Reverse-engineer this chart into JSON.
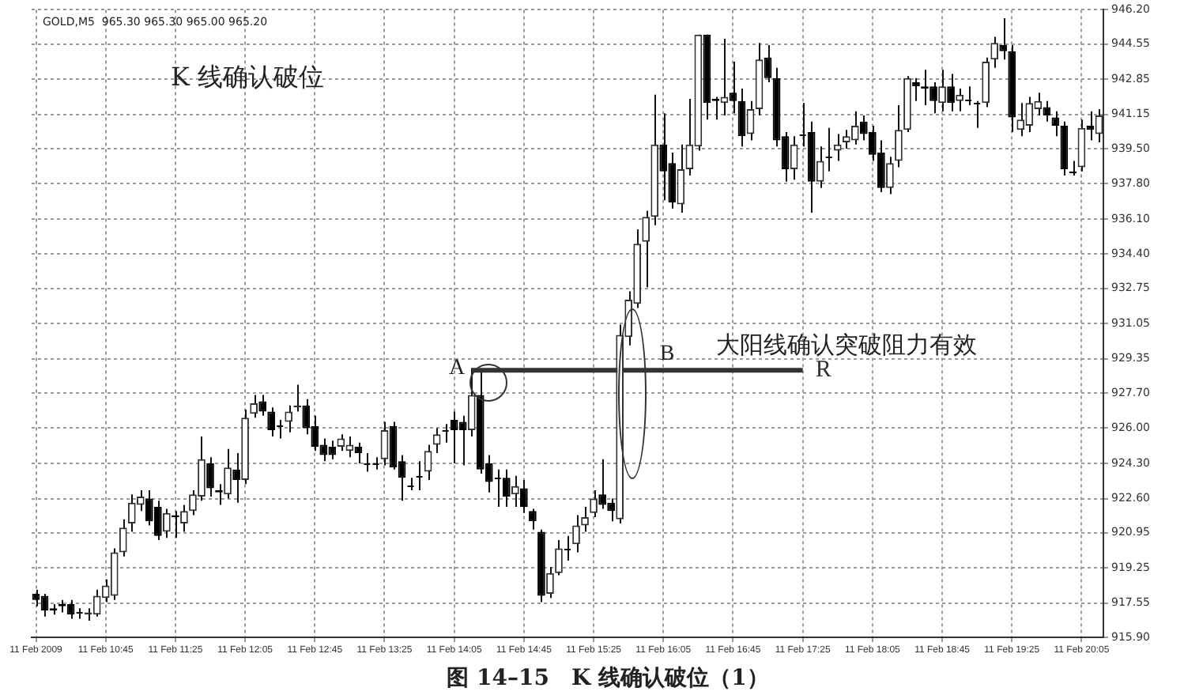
{
  "chart_data": {
    "type": "candlestick",
    "title": "图 14–15　K 线确认破位（1）",
    "annotations": [
      "GOLD,M5  965.30 965.30 965.00 965.20",
      "K 线确认破位",
      "大阳线确认突破阻力有效",
      "A",
      "B"
    ],
    "categories": [
      "11 Feb 2009",
      null,
      null,
      null,
      null,
      null,
      null,
      null,
      "11 Feb 10:45",
      null,
      null,
      null,
      null,
      null,
      null,
      null,
      "11 Feb 11:25",
      null,
      null,
      null,
      null,
      null,
      null,
      null,
      "11 Feb 12:05",
      null,
      null,
      null,
      null,
      null,
      null,
      null,
      "11 Feb 12:45",
      null,
      null,
      null,
      null,
      null,
      null,
      null,
      "11 Feb 13:25",
      null,
      null,
      null,
      null,
      null,
      null,
      null,
      "11 Feb 14:05",
      null,
      null,
      null,
      null,
      null,
      null,
      null,
      "11 Feb 14:45",
      null,
      null,
      null,
      null,
      null,
      null,
      null,
      "11 Feb 15:25",
      null,
      null,
      null,
      null,
      null,
      null,
      null,
      "11 Feb 16:05",
      null,
      null,
      null,
      null,
      null,
      null,
      null,
      "11 Feb 16:45",
      null,
      null,
      null,
      null,
      null,
      null,
      null,
      "11 Feb 17:25",
      null,
      null,
      null,
      null,
      null,
      null,
      null,
      "11 Feb 18:05",
      null,
      null,
      null,
      null,
      null,
      null,
      null,
      "11 Feb 18:45",
      null,
      null,
      null,
      null,
      null,
      null,
      null,
      "11 Feb 19:25",
      null,
      null,
      null,
      null,
      null,
      null,
      null,
      "11 Feb 20:05",
      null,
      null
    ],
    "ohlc": [
      [
        918.0,
        918.2,
        917.4,
        917.7
      ],
      [
        917.9,
        918.0,
        916.9,
        917.2
      ],
      [
        917.3,
        917.5,
        917.0,
        917.2
      ],
      [
        917.5,
        917.7,
        917.1,
        917.4
      ],
      [
        917.5,
        917.7,
        916.8,
        917.0
      ],
      [
        917.1,
        917.3,
        916.8,
        917.1
      ],
      [
        917.0,
        917.3,
        916.7,
        917.1
      ],
      [
        917.0,
        918.2,
        916.9,
        917.9
      ],
      [
        917.8,
        918.7,
        917.6,
        918.4
      ],
      [
        917.9,
        920.2,
        917.7,
        920.0
      ],
      [
        920.0,
        921.6,
        919.8,
        921.2
      ],
      [
        921.4,
        922.8,
        921.0,
        922.4
      ],
      [
        922.3,
        923.0,
        922.0,
        922.7
      ],
      [
        922.6,
        923.0,
        921.3,
        921.5
      ],
      [
        922.2,
        922.5,
        920.6,
        920.8
      ],
      [
        921.0,
        922.1,
        920.7,
        921.9
      ],
      [
        921.8,
        922.0,
        920.7,
        921.7
      ],
      [
        921.4,
        922.3,
        921.0,
        922.0
      ],
      [
        922.0,
        923.0,
        921.8,
        922.8
      ],
      [
        922.7,
        925.6,
        922.5,
        924.5
      ],
      [
        924.3,
        924.6,
        922.7,
        923.1
      ],
      [
        923.0,
        923.3,
        922.3,
        922.9
      ],
      [
        922.8,
        925.0,
        922.6,
        924.1
      ],
      [
        924.0,
        924.8,
        922.4,
        923.5
      ],
      [
        923.5,
        926.9,
        923.3,
        926.5
      ],
      [
        926.7,
        927.6,
        926.5,
        927.2
      ],
      [
        927.3,
        927.6,
        926.6,
        926.8
      ],
      [
        926.8,
        927.0,
        925.6,
        925.9
      ],
      [
        926.1,
        926.4,
        925.5,
        926.1
      ],
      [
        926.3,
        927.1,
        925.8,
        926.8
      ],
      [
        927.0,
        928.1,
        926.8,
        927.1
      ],
      [
        927.1,
        927.4,
        925.7,
        926.0
      ],
      [
        926.1,
        926.6,
        924.9,
        925.1
      ],
      [
        925.2,
        925.5,
        924.4,
        924.7
      ],
      [
        925.1,
        925.4,
        924.5,
        924.7
      ],
      [
        925.1,
        925.7,
        924.9,
        925.5
      ],
      [
        924.9,
        925.6,
        924.6,
        925.2
      ],
      [
        925.1,
        925.3,
        924.3,
        924.8
      ],
      [
        924.3,
        924.8,
        923.9,
        924.3
      ],
      [
        924.3,
        924.6,
        924.0,
        924.3
      ],
      [
        924.5,
        926.3,
        924.2,
        925.9
      ],
      [
        926.1,
        926.3,
        924.0,
        924.1
      ],
      [
        924.4,
        924.7,
        922.5,
        923.6
      ],
      [
        923.2,
        923.6,
        923.0,
        923.2
      ],
      [
        923.7,
        924.4,
        923.0,
        923.7
      ],
      [
        923.9,
        925.2,
        923.5,
        924.9
      ],
      [
        925.2,
        926.0,
        924.8,
        925.7
      ],
      [
        925.9,
        926.2,
        925.3,
        925.9
      ],
      [
        926.4,
        926.8,
        924.3,
        925.9
      ],
      [
        926.3,
        926.6,
        924.2,
        925.9
      ],
      [
        925.9,
        928.9,
        925.6,
        927.6
      ],
      [
        927.6,
        928.7,
        923.8,
        924.0
      ],
      [
        924.3,
        924.7,
        922.9,
        923.4
      ],
      [
        923.6,
        924.0,
        922.2,
        923.6
      ],
      [
        923.6,
        924.0,
        922.2,
        922.7
      ],
      [
        922.8,
        923.7,
        922.2,
        923.2
      ],
      [
        923.1,
        923.5,
        921.9,
        922.2
      ],
      [
        922.0,
        922.1,
        921.1,
        921.5
      ],
      [
        921.0,
        921.1,
        917.6,
        917.9
      ],
      [
        918.0,
        919.3,
        917.8,
        919.0
      ],
      [
        919.0,
        920.6,
        918.9,
        920.2
      ],
      [
        920.2,
        920.8,
        919.6,
        920.2
      ],
      [
        920.4,
        921.8,
        920.0,
        921.3
      ],
      [
        921.3,
        922.2,
        921.0,
        921.7
      ],
      [
        921.9,
        923.0,
        921.7,
        922.6
      ],
      [
        922.8,
        924.5,
        922.1,
        922.3
      ],
      [
        922.4,
        922.6,
        921.5,
        922.0
      ],
      [
        921.6,
        931.0,
        921.4,
        930.5
      ],
      [
        930.4,
        932.6,
        930.0,
        932.2
      ],
      [
        932.0,
        935.6,
        931.8,
        934.9
      ],
      [
        935.0,
        936.5,
        932.8,
        936.2
      ],
      [
        936.2,
        942.1,
        935.8,
        939.7
      ],
      [
        939.7,
        941.2,
        937.0,
        938.4
      ],
      [
        938.8,
        939.3,
        936.6,
        936.9
      ],
      [
        936.8,
        939.7,
        936.4,
        938.5
      ],
      [
        938.5,
        941.9,
        938.2,
        939.7
      ],
      [
        939.6,
        945.0,
        939.4,
        945.0
      ],
      [
        945.0,
        945.0,
        940.9,
        941.7
      ],
      [
        941.9,
        942.0,
        940.9,
        941.8
      ],
      [
        941.7,
        944.8,
        941.1,
        942.0
      ],
      [
        942.2,
        943.7,
        941.2,
        941.8
      ],
      [
        941.8,
        942.4,
        939.6,
        940.1
      ],
      [
        940.2,
        941.8,
        939.9,
        941.4
      ],
      [
        941.4,
        944.6,
        941.1,
        943.8
      ],
      [
        943.9,
        944.5,
        942.7,
        942.9
      ],
      [
        942.9,
        943.4,
        939.6,
        939.9
      ],
      [
        940.1,
        940.3,
        937.9,
        938.5
      ],
      [
        938.5,
        940.1,
        938.0,
        939.7
      ],
      [
        940.2,
        941.7,
        939.6,
        940.2
      ],
      [
        940.3,
        940.8,
        936.4,
        937.9
      ],
      [
        937.9,
        939.6,
        937.6,
        938.9
      ],
      [
        939.1,
        940.5,
        938.4,
        939.1
      ],
      [
        939.4,
        940.2,
        938.9,
        939.7
      ],
      [
        939.8,
        940.4,
        939.5,
        940.1
      ],
      [
        939.9,
        941.3,
        939.7,
        940.6
      ],
      [
        940.8,
        941.1,
        939.9,
        940.2
      ],
      [
        940.3,
        940.6,
        938.9,
        939.2
      ],
      [
        939.3,
        939.9,
        937.4,
        937.6
      ],
      [
        937.6,
        939.1,
        937.3,
        938.8
      ],
      [
        938.9,
        941.6,
        938.6,
        940.4
      ],
      [
        940.4,
        943.0,
        940.3,
        942.9
      ],
      [
        942.7,
        942.9,
        941.8,
        942.5
      ],
      [
        942.5,
        943.3,
        941.6,
        942.4
      ],
      [
        942.5,
        942.7,
        941.2,
        941.8
      ],
      [
        941.7,
        943.3,
        941.3,
        942.5
      ],
      [
        942.5,
        943.1,
        941.3,
        941.7
      ],
      [
        941.8,
        942.4,
        941.3,
        942.1
      ],
      [
        941.9,
        942.5,
        941.6,
        941.9
      ],
      [
        941.7,
        941.8,
        940.5,
        941.7
      ],
      [
        941.7,
        943.9,
        941.5,
        943.7
      ],
      [
        943.8,
        944.9,
        943.4,
        944.6
      ],
      [
        944.5,
        945.8,
        943.8,
        944.2
      ],
      [
        944.2,
        944.5,
        940.3,
        941.0
      ],
      [
        940.4,
        941.7,
        940.1,
        940.9
      ],
      [
        940.6,
        942.0,
        940.3,
        941.7
      ],
      [
        941.4,
        942.2,
        941.1,
        941.8
      ],
      [
        941.5,
        941.8,
        940.8,
        941.1
      ],
      [
        941.0,
        941.3,
        940.1,
        940.6
      ],
      [
        940.6,
        940.8,
        938.2,
        938.5
      ],
      [
        938.4,
        938.9,
        938.2,
        938.3
      ],
      [
        938.6,
        940.9,
        938.4,
        940.5
      ],
      [
        940.6,
        941.3,
        939.9,
        940.4
      ],
      [
        940.2,
        941.4,
        939.8,
        941.1
      ]
    ],
    "series": [
      {
        "type": "line",
        "name": "R",
        "color": "#333333",
        "values": [
          null,
          null,
          null,
          null,
          null,
          null,
          null,
          null,
          null,
          null,
          null,
          null,
          null,
          null,
          null,
          null,
          null,
          null,
          null,
          null,
          null,
          null,
          null,
          null,
          null,
          null,
          null,
          null,
          null,
          null,
          null,
          null,
          null,
          null,
          null,
          null,
          null,
          null,
          null,
          null,
          null,
          null,
          null,
          null,
          null,
          null,
          null,
          null,
          null,
          null,
          928.8,
          928.8,
          928.8,
          928.8,
          928.8,
          928.8,
          928.8,
          928.8,
          928.8,
          928.8,
          928.8,
          928.8,
          928.8,
          928.8,
          928.8,
          928.8,
          928.8,
          928.8,
          928.8,
          928.8,
          928.8,
          928.8,
          928.8,
          928.8,
          928.8,
          928.8,
          928.8,
          928.8,
          928.8,
          928.8,
          928.8,
          928.8,
          928.8,
          928.8,
          928.8,
          928.8,
          928.8,
          928.8,
          928.8,
          null,
          null,
          null,
          null,
          null,
          null,
          null,
          null,
          null,
          null,
          null,
          null,
          null,
          null,
          null,
          null,
          null,
          null,
          null,
          null,
          null,
          null,
          null,
          null,
          null,
          null,
          null,
          null,
          null,
          null,
          null,
          null,
          null,
          null
        ]
      }
    ],
    "ylim": [
      915.9,
      946.2
    ],
    "yticks": [
      {
        "value": 915.9,
        "label": "915.90"
      },
      {
        "value": 917.55,
        "label": "917.55"
      },
      {
        "value": 919.25,
        "label": "919.25"
      },
      {
        "value": 920.95,
        "label": "920.95"
      },
      {
        "value": 922.6,
        "label": "922.60"
      },
      {
        "value": 924.3,
        "label": "924.30"
      },
      {
        "value": 926.0,
        "label": "926.00"
      },
      {
        "value": 927.7,
        "label": "927.70"
      },
      {
        "value": 929.35,
        "label": "929.35"
      },
      {
        "value": 931.05,
        "label": "931.05"
      },
      {
        "value": 932.75,
        "label": "932.75"
      },
      {
        "value": 934.4,
        "label": "934.40"
      },
      {
        "value": 936.1,
        "label": "936.10"
      },
      {
        "value": 937.8,
        "label": "937.80"
      },
      {
        "value": 939.5,
        "label": "939.50"
      },
      {
        "value": 941.15,
        "label": "941.15"
      },
      {
        "value": 942.85,
        "label": "942.85"
      },
      {
        "value": 944.55,
        "label": "944.55"
      },
      {
        "value": 946.2,
        "label": "946.20"
      }
    ],
    "grid": true,
    "legend": false
  }
}
